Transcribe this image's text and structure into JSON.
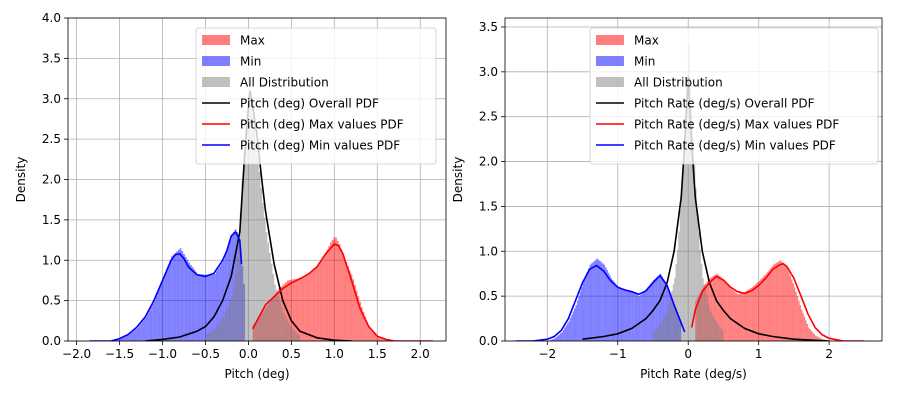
{
  "colors": {
    "max": "#ff0000",
    "min": "#0000ff",
    "all": "#808080",
    "overall": "#000000",
    "grid": "#b0b0b0"
  },
  "chart_data": [
    {
      "type": "histogram",
      "xlabel": "Pitch (deg)",
      "ylabel": "Density",
      "xlim": [
        -2.1,
        2.3
      ],
      "ylim": [
        0,
        4.0
      ],
      "xticks": [
        -2.0,
        -1.5,
        -1.0,
        -0.5,
        0.0,
        0.5,
        1.0,
        1.5,
        2.0
      ],
      "xtick_labels": [
        "−2.0",
        "−1.5",
        "−1.0",
        "−0.5",
        "0.0",
        "0.5",
        "1.0",
        "1.5",
        "2.0"
      ],
      "yticks": [
        0,
        0.5,
        1.0,
        1.5,
        2.0,
        2.5,
        3.0,
        3.5,
        4.0
      ],
      "ytick_labels": [
        "0.0",
        "0.5",
        "1.0",
        "1.5",
        "2.0",
        "2.5",
        "3.0",
        "3.5",
        "4.0"
      ],
      "grid": true,
      "legend_position": "top-right",
      "legend": [
        {
          "label": "Max",
          "kind": "patch",
          "color": "max"
        },
        {
          "label": "Min",
          "kind": "patch",
          "color": "min"
        },
        {
          "label": "All Distribution",
          "kind": "patch",
          "color": "all"
        },
        {
          "label": "Pitch (deg) Overall PDF",
          "kind": "line",
          "color": "overall"
        },
        {
          "label": "Pitch (deg) Max values PDF",
          "kind": "line",
          "color": "max"
        },
        {
          "label": "Pitch (deg) Min values PDF",
          "kind": "line",
          "color": "min"
        }
      ],
      "series": [
        {
          "name": "Max",
          "kind": "hist",
          "color": "max",
          "x": [
            0.05,
            0.15,
            0.25,
            0.35,
            0.45,
            0.55,
            0.65,
            0.75,
            0.85,
            0.95,
            1.0,
            1.05,
            1.1,
            1.2,
            1.3,
            1.4,
            1.5,
            1.6,
            1.7
          ],
          "y": [
            0.2,
            0.35,
            0.5,
            0.65,
            0.75,
            0.77,
            0.8,
            0.88,
            1.0,
            1.22,
            1.3,
            1.2,
            1.05,
            0.8,
            0.45,
            0.15,
            0.05,
            0.02,
            0.0
          ]
        },
        {
          "name": "Min",
          "kind": "hist",
          "color": "min",
          "x": [
            -1.6,
            -1.5,
            -1.4,
            -1.3,
            -1.2,
            -1.1,
            -1.0,
            -0.9,
            -0.8,
            -0.7,
            -0.6,
            -0.5,
            -0.4,
            -0.3,
            -0.2,
            -0.15,
            -0.1,
            -0.05
          ],
          "y": [
            0.0,
            0.03,
            0.08,
            0.16,
            0.3,
            0.5,
            0.78,
            1.05,
            1.15,
            0.97,
            0.83,
            0.82,
            0.83,
            1.0,
            1.32,
            1.4,
            1.15,
            0.6
          ]
        },
        {
          "name": "All Distribution",
          "kind": "hist",
          "color": "all",
          "x": [
            -0.5,
            -0.4,
            -0.3,
            -0.2,
            -0.15,
            -0.1,
            -0.05,
            0.0,
            0.05,
            0.1,
            0.15,
            0.2,
            0.3,
            0.4,
            0.5,
            0.6
          ],
          "y": [
            0.08,
            0.15,
            0.3,
            0.55,
            0.9,
            1.6,
            2.55,
            3.05,
            2.75,
            2.3,
            1.8,
            1.35,
            0.7,
            0.35,
            0.15,
            0.05
          ]
        },
        {
          "name": "Pitch (deg) Overall PDF",
          "kind": "line",
          "color": "overall",
          "x": [
            -1.2,
            -1.0,
            -0.8,
            -0.6,
            -0.5,
            -0.4,
            -0.3,
            -0.2,
            -0.1,
            -0.05,
            0.0,
            0.02,
            0.05,
            0.1,
            0.15,
            0.2,
            0.3,
            0.4,
            0.5,
            0.6,
            0.8,
            1.0,
            1.2
          ],
          "y": [
            0.0,
            0.02,
            0.05,
            0.12,
            0.18,
            0.3,
            0.5,
            0.8,
            1.35,
            2.2,
            2.9,
            3.1,
            2.9,
            2.55,
            2.05,
            1.6,
            0.95,
            0.5,
            0.25,
            0.12,
            0.04,
            0.01,
            0.0
          ]
        },
        {
          "name": "Pitch (deg) Max values PDF",
          "kind": "line",
          "color": "max",
          "x": [
            0.05,
            0.1,
            0.2,
            0.3,
            0.4,
            0.5,
            0.6,
            0.7,
            0.8,
            0.9,
            1.0,
            1.05,
            1.1,
            1.2,
            1.3,
            1.4,
            1.5,
            1.6,
            1.7,
            1.8,
            2.0,
            2.15
          ],
          "y": [
            0.15,
            0.25,
            0.45,
            0.55,
            0.65,
            0.72,
            0.77,
            0.83,
            0.92,
            1.08,
            1.2,
            1.18,
            1.08,
            0.75,
            0.4,
            0.18,
            0.06,
            0.02,
            0.0,
            0.0,
            0.0,
            0.0
          ]
        },
        {
          "name": "Pitch (deg) Min values PDF",
          "kind": "line",
          "color": "min",
          "x": [
            -1.85,
            -1.6,
            -1.5,
            -1.4,
            -1.3,
            -1.2,
            -1.1,
            -1.0,
            -0.9,
            -0.85,
            -0.8,
            -0.75,
            -0.7,
            -0.6,
            -0.5,
            -0.4,
            -0.3,
            -0.25,
            -0.2,
            -0.15,
            -0.1,
            -0.08
          ],
          "y": [
            0.0,
            0.0,
            0.03,
            0.08,
            0.17,
            0.3,
            0.5,
            0.75,
            1.0,
            1.07,
            1.08,
            1.02,
            0.92,
            0.82,
            0.8,
            0.84,
            1.0,
            1.12,
            1.3,
            1.35,
            1.25,
            0.95
          ]
        }
      ]
    },
    {
      "type": "histogram",
      "xlabel": "Pitch Rate (deg/s)",
      "ylabel": "Density",
      "xlim": [
        -2.6,
        2.75
      ],
      "ylim": [
        0,
        3.6
      ],
      "xticks": [
        -2,
        -1,
        0,
        1,
        2
      ],
      "xtick_labels": [
        "−2",
        "−1",
        "0",
        "1",
        "2"
      ],
      "yticks": [
        0,
        0.5,
        1.0,
        1.5,
        2.0,
        2.5,
        3.0,
        3.5
      ],
      "ytick_labels": [
        "0.0",
        "0.5",
        "1.0",
        "1.5",
        "2.0",
        "2.5",
        "3.0",
        "3.5"
      ],
      "grid": true,
      "legend_position": "top-right",
      "legend": [
        {
          "label": "Max",
          "kind": "patch",
          "color": "max"
        },
        {
          "label": "Min",
          "kind": "patch",
          "color": "min"
        },
        {
          "label": "All Distribution",
          "kind": "patch",
          "color": "all"
        },
        {
          "label": "Pitch Rate (deg/s) Overall PDF",
          "kind": "line",
          "color": "overall"
        },
        {
          "label": "Pitch Rate (deg/s) Max values PDF",
          "kind": "line",
          "color": "max"
        },
        {
          "label": "Pitch Rate (deg/s) Min values PDF",
          "kind": "line",
          "color": "min"
        }
      ],
      "series": [
        {
          "name": "Max",
          "kind": "hist",
          "color": "max",
          "x": [
            0.1,
            0.2,
            0.3,
            0.4,
            0.5,
            0.6,
            0.7,
            0.8,
            0.9,
            1.0,
            1.1,
            1.2,
            1.3,
            1.4,
            1.5,
            1.6,
            1.7,
            1.8,
            1.9,
            2.0
          ],
          "y": [
            0.45,
            0.6,
            0.7,
            0.75,
            0.68,
            0.58,
            0.52,
            0.55,
            0.6,
            0.67,
            0.75,
            0.85,
            0.9,
            0.82,
            0.6,
            0.35,
            0.15,
            0.06,
            0.02,
            0.0
          ]
        },
        {
          "name": "Min",
          "kind": "hist",
          "color": "min",
          "x": [
            -2.0,
            -1.9,
            -1.8,
            -1.7,
            -1.6,
            -1.5,
            -1.4,
            -1.3,
            -1.2,
            -1.1,
            -1.0,
            -0.9,
            -0.8,
            -0.7,
            -0.6,
            -0.5,
            -0.4,
            -0.3,
            -0.2,
            -0.1
          ],
          "y": [
            0.0,
            0.03,
            0.1,
            0.22,
            0.4,
            0.65,
            0.85,
            0.92,
            0.85,
            0.7,
            0.6,
            0.57,
            0.55,
            0.5,
            0.58,
            0.68,
            0.75,
            0.6,
            0.4,
            0.2
          ]
        },
        {
          "name": "All Distribution",
          "kind": "hist",
          "color": "all",
          "x": [
            -0.5,
            -0.4,
            -0.3,
            -0.2,
            -0.15,
            -0.1,
            -0.05,
            0.0,
            0.05,
            0.1,
            0.15,
            0.2,
            0.3,
            0.4,
            0.5
          ],
          "y": [
            0.1,
            0.2,
            0.35,
            0.7,
            1.1,
            1.7,
            2.4,
            3.3,
            2.4,
            1.7,
            1.1,
            0.7,
            0.35,
            0.2,
            0.1
          ]
        },
        {
          "name": "Pitch Rate (deg/s) Overall PDF",
          "kind": "line",
          "color": "overall",
          "x": [
            -1.5,
            -1.2,
            -1.0,
            -0.8,
            -0.6,
            -0.5,
            -0.4,
            -0.3,
            -0.2,
            -0.1,
            -0.05,
            0.0,
            0.05,
            0.1,
            0.2,
            0.3,
            0.4,
            0.5,
            0.6,
            0.8,
            1.0,
            1.2,
            1.5,
            2.0
          ],
          "y": [
            0.02,
            0.05,
            0.08,
            0.14,
            0.25,
            0.34,
            0.45,
            0.65,
            1.0,
            1.6,
            2.2,
            2.95,
            2.2,
            1.6,
            1.0,
            0.65,
            0.45,
            0.34,
            0.25,
            0.14,
            0.08,
            0.05,
            0.02,
            0.0
          ]
        },
        {
          "name": "Pitch Rate (deg/s) Max values PDF",
          "kind": "line",
          "color": "max",
          "x": [
            0.05,
            0.1,
            0.2,
            0.3,
            0.4,
            0.5,
            0.6,
            0.7,
            0.8,
            0.9,
            1.0,
            1.1,
            1.2,
            1.3,
            1.35,
            1.4,
            1.5,
            1.6,
            1.7,
            1.8,
            1.9,
            2.0,
            2.2,
            2.5
          ],
          "y": [
            0.15,
            0.35,
            0.55,
            0.65,
            0.72,
            0.68,
            0.6,
            0.55,
            0.53,
            0.56,
            0.62,
            0.7,
            0.8,
            0.85,
            0.86,
            0.83,
            0.7,
            0.5,
            0.3,
            0.15,
            0.07,
            0.03,
            0.0,
            0.0
          ]
        },
        {
          "name": "Pitch Rate (deg/s) Min values PDF",
          "kind": "line",
          "color": "min",
          "x": [
            -2.45,
            -2.2,
            -2.0,
            -1.9,
            -1.8,
            -1.7,
            -1.6,
            -1.5,
            -1.4,
            -1.3,
            -1.2,
            -1.1,
            -1.0,
            -0.9,
            -0.8,
            -0.7,
            -0.6,
            -0.5,
            -0.4,
            -0.3,
            -0.2,
            -0.1,
            -0.05
          ],
          "y": [
            0.0,
            0.0,
            0.02,
            0.05,
            0.12,
            0.25,
            0.45,
            0.65,
            0.8,
            0.84,
            0.78,
            0.67,
            0.6,
            0.57,
            0.55,
            0.52,
            0.56,
            0.65,
            0.73,
            0.62,
            0.4,
            0.2,
            0.1
          ]
        }
      ]
    }
  ]
}
